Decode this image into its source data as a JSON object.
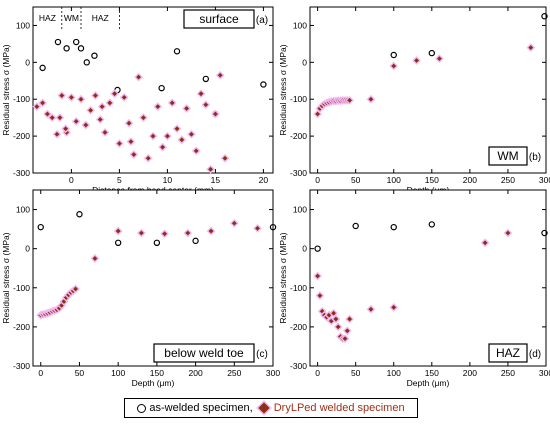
{
  "legend": {
    "as_welded": "as-welded specimen,",
    "drylped": "DryLPed welded specimen"
  },
  "colors": {
    "diamond": "#8b2f15",
    "halo": "#f2b8f2",
    "circle": "#000000"
  },
  "chart_data": [
    {
      "type": "scatter",
      "panel": "(a)",
      "label_box": "surface",
      "xlabel": "Distance from bead center (mm)",
      "ylabel": "Residual stress σ (MPa)",
      "xlim": [
        -4,
        21
      ],
      "ylim": [
        -300,
        150
      ],
      "xticks": [
        0,
        5,
        10,
        15,
        20
      ],
      "xtick_labels": [
        "0",
        "5",
        "10",
        "15",
        "20"
      ],
      "yticks": [
        -300,
        -200,
        -100,
        0,
        100
      ],
      "ytick_labels": [
        "-300",
        "-200",
        "-100",
        "0",
        "100"
      ],
      "zones": {
        "labels": [
          "HAZ",
          "WM",
          "HAZ"
        ],
        "dividers_x": [
          -1,
          1,
          5
        ]
      },
      "series": [
        {
          "name": "as-welded specimen",
          "marker": "circle",
          "x": [
            -3,
            -1.4,
            -0.5,
            0.5,
            1,
            1.6,
            2.4,
            4.8,
            9.4,
            11,
            14,
            15,
            20
          ],
          "y": [
            -15,
            55,
            38,
            55,
            38,
            0,
            18,
            -75,
            -70,
            30,
            -45,
            -140,
            -60
          ]
        },
        {
          "name": "DryLPed welded specimen",
          "marker": "diamond",
          "x": [
            -3.6,
            -3,
            -2.5,
            -2,
            -1.5,
            -1,
            -0.5,
            0,
            0.5,
            1,
            1.5,
            2,
            2.5,
            3,
            3.5,
            4,
            4.5,
            5,
            5.5,
            6,
            6.5,
            7,
            7.5,
            8,
            8.5,
            9,
            9.5,
            10,
            10.5,
            11,
            11.5,
            12,
            12.5,
            13,
            13.5,
            14,
            14.5,
            15,
            15.5,
            16,
            -1.2,
            -0.6,
            3.2,
            6.2
          ],
          "y": [
            -120,
            -110,
            -140,
            -150,
            -195,
            -90,
            -190,
            -95,
            -160,
            -100,
            -170,
            -130,
            -90,
            -155,
            -190,
            -110,
            -85,
            -220,
            -95,
            -165,
            -250,
            -40,
            -150,
            -260,
            -200,
            -120,
            -230,
            -200,
            -110,
            -180,
            -210,
            -125,
            -195,
            -240,
            -85,
            -115,
            -290,
            -140,
            -35,
            -260,
            -150,
            -180,
            -120,
            -215
          ]
        }
      ]
    },
    {
      "type": "scatter",
      "panel": "(b)",
      "label_box": "WM",
      "xlabel": "Depth (μm)",
      "ylabel": "Residual stress σ (MPa)",
      "xlim": [
        -10,
        300
      ],
      "ylim": [
        -300,
        150
      ],
      "xticks": [
        0,
        50,
        100,
        150,
        200,
        250,
        300
      ],
      "xtick_labels": [
        "0",
        "50",
        "100",
        "150",
        "200",
        "250",
        "300"
      ],
      "yticks": [
        -300,
        -200,
        -100,
        0,
        100
      ],
      "ytick_labels": [
        "-300",
        "-200",
        "-100",
        "0",
        "100"
      ],
      "series": [
        {
          "name": "as-welded specimen",
          "marker": "circle",
          "x": [
            100,
            150,
            298
          ],
          "y": [
            20,
            25,
            125
          ]
        },
        {
          "name": "DryLPed welded specimen",
          "marker": "diamond",
          "x": [
            0,
            3,
            6,
            9,
            12,
            15,
            18,
            21,
            24,
            27,
            30,
            33,
            36,
            39,
            42,
            70,
            100,
            130,
            160,
            280
          ],
          "y": [
            -140,
            -125,
            -118,
            -113,
            -110,
            -108,
            -106,
            -105,
            -105,
            -104,
            -104,
            -103,
            -103,
            -103,
            -103,
            -100,
            -10,
            5,
            10,
            40
          ]
        }
      ]
    },
    {
      "type": "scatter",
      "panel": "(c)",
      "label_box": "below weld toe",
      "xlabel": "Depth (μm)",
      "ylabel": "Residual stress σ (MPa)",
      "xlim": [
        -10,
        300
      ],
      "ylim": [
        -300,
        150
      ],
      "xticks": [
        0,
        50,
        100,
        150,
        200,
        250,
        300
      ],
      "xtick_labels": [
        "0",
        "50",
        "100",
        "150",
        "200",
        "250",
        "300"
      ],
      "yticks": [
        -300,
        -200,
        -100,
        0,
        100
      ],
      "ytick_labels": [
        "-300",
        "-200",
        "-100",
        "0",
        "100"
      ],
      "series": [
        {
          "name": "as-welded specimen",
          "marker": "circle",
          "x": [
            0,
            50,
            100,
            150,
            200,
            300
          ],
          "y": [
            55,
            88,
            15,
            15,
            20,
            55
          ]
        },
        {
          "name": "DryLPed welded specimen",
          "marker": "diamond",
          "x": [
            0,
            3,
            6,
            9,
            12,
            15,
            18,
            21,
            24,
            27,
            30,
            33,
            36,
            39,
            42,
            45,
            70,
            100,
            130,
            160,
            190,
            220,
            250,
            280
          ],
          "y": [
            -170,
            -168,
            -167,
            -165,
            -163,
            -160,
            -158,
            -156,
            -152,
            -145,
            -135,
            -125,
            -118,
            -112,
            -108,
            -103,
            -25,
            45,
            40,
            38,
            40,
            45,
            65,
            52
          ]
        }
      ]
    },
    {
      "type": "scatter",
      "panel": "(d)",
      "label_box": "HAZ",
      "xlabel": "Depth (μm)",
      "ylabel": "Residual stress σ (MPa)",
      "xlim": [
        -10,
        300
      ],
      "ylim": [
        -300,
        150
      ],
      "xticks": [
        0,
        50,
        100,
        150,
        200,
        250,
        300
      ],
      "xtick_labels": [
        "0",
        "50",
        "100",
        "150",
        "200",
        "250",
        "300"
      ],
      "yticks": [
        -300,
        -200,
        -100,
        0,
        100
      ],
      "ytick_labels": [
        "-300",
        "-200",
        "-100",
        "0",
        "100"
      ],
      "series": [
        {
          "name": "as-welded specimen",
          "marker": "circle",
          "x": [
            0,
            50,
            100,
            150,
            298
          ],
          "y": [
            0,
            58,
            55,
            62,
            40
          ]
        },
        {
          "name": "DryLPed welded specimen",
          "marker": "diamond",
          "x": [
            0,
            3,
            6,
            9,
            12,
            15,
            18,
            21,
            24,
            27,
            30,
            33,
            36,
            39,
            42,
            70,
            100,
            220,
            250
          ],
          "y": [
            -70,
            -120,
            -160,
            -170,
            -175,
            -170,
            -185,
            -165,
            -180,
            -200,
            -225,
            -230,
            -230,
            -210,
            -180,
            -155,
            -150,
            15,
            40
          ]
        }
      ]
    }
  ]
}
